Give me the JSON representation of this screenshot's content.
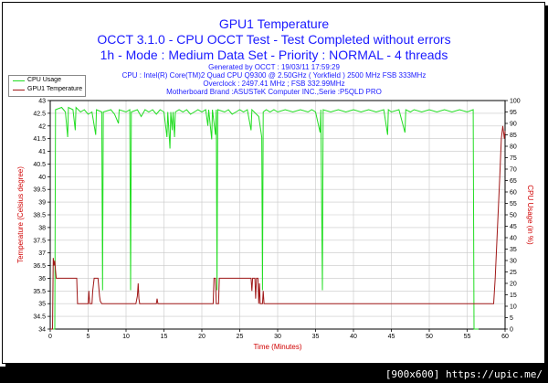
{
  "chart_data": {
    "type": "line",
    "title": "GPU1 Temperature",
    "subtitle": "OCCT 3.1.0 - CPU OCCT Test - Test Completed without errors",
    "subtitle2": "1h - Mode : Medium Data Set - Priority : NORMAL - 4 threads",
    "info_lines": [
      "Generated by OCCT : 19/03/11 17:59:29",
      "CPU : Intel(R) Core(TM)2 Quad CPU Q9300 @ 2.50GHz ( Yorkfield ) 2500 MHz FSB 333MHz",
      "Overclock : 2497.41 MHz ; FSB 332.99MHz",
      "Motherboard Brand :ASUSTeK Computer INC.,Serie :P5QLD PRO"
    ],
    "xlabel": "Time (Minutes)",
    "ylabel": "Temperature (Celsius degree)",
    "y2label": "CPU Usage (in %)",
    "xlim": [
      0,
      60
    ],
    "ylim": [
      34,
      43
    ],
    "y2lim": [
      0,
      100
    ],
    "x_ticks": [
      0,
      5,
      10,
      15,
      20,
      25,
      30,
      35,
      40,
      45,
      50,
      55,
      60
    ],
    "y_ticks": [
      34,
      34.5,
      35,
      35.5,
      36,
      36.5,
      37,
      37.5,
      38,
      38.5,
      39,
      39.5,
      40,
      40.5,
      41,
      41.5,
      42,
      42.5,
      43
    ],
    "y_tick_labels": [
      "34",
      "34.5",
      "35",
      "35.5",
      "36",
      "36.5",
      "37",
      "37.5",
      "38",
      "38.5",
      "39",
      "39.5",
      "40",
      "40.5",
      "41",
      "41.5",
      "42",
      "42.5",
      "43"
    ],
    "y2_ticks": [
      0,
      5,
      10,
      15,
      20,
      25,
      30,
      35,
      40,
      45,
      50,
      55,
      60,
      65,
      70,
      75,
      80,
      85,
      90,
      95,
      100
    ],
    "grid": true,
    "legend_position": "top-left",
    "colors": {
      "cpu_usage": "#22dd22",
      "gpu_temp": "#a01818",
      "plot_bg": "#ffffff",
      "grid": "#c8c8c8",
      "axis_text": "#000000",
      "title": "#1a1aff",
      "xlabel": "#d00000",
      "ylabel": "#d00000"
    },
    "series": [
      {
        "name": "CPU Usage",
        "axis": "right",
        "points": [
          [
            0,
            0
          ],
          [
            0.6,
            0
          ],
          [
            0.7,
            96
          ],
          [
            1.5,
            97
          ],
          [
            2.0,
            95
          ],
          [
            2.3,
            84
          ],
          [
            2.4,
            97
          ],
          [
            3.0,
            96
          ],
          [
            3.3,
            87
          ],
          [
            3.4,
            97
          ],
          [
            4.0,
            95
          ],
          [
            4.5,
            96
          ],
          [
            5.0,
            94
          ],
          [
            5.5,
            95
          ],
          [
            6.0,
            85
          ],
          [
            6.1,
            96
          ],
          [
            6.8,
            95
          ],
          [
            6.9,
            17
          ],
          [
            7.0,
            95
          ],
          [
            8.0,
            96
          ],
          [
            8.5,
            94
          ],
          [
            9.0,
            90
          ],
          [
            9.1,
            96
          ],
          [
            10.0,
            95
          ],
          [
            10.5,
            96
          ],
          [
            10.6,
            17
          ],
          [
            10.7,
            95
          ],
          [
            11.5,
            96
          ],
          [
            12.0,
            93
          ],
          [
            12.5,
            96
          ],
          [
            13.0,
            95
          ],
          [
            13.5,
            96
          ],
          [
            14.0,
            94
          ],
          [
            14.5,
            96
          ],
          [
            15.0,
            95
          ],
          [
            15.4,
            84
          ],
          [
            15.5,
            95
          ],
          [
            15.8,
            79
          ],
          [
            15.9,
            95
          ],
          [
            16.1,
            87
          ],
          [
            16.2,
            95
          ],
          [
            16.4,
            84
          ],
          [
            16.5,
            95
          ],
          [
            17.0,
            96
          ],
          [
            17.5,
            95
          ],
          [
            18.0,
            96
          ],
          [
            18.5,
            94
          ],
          [
            19.0,
            95
          ],
          [
            19.5,
            96
          ],
          [
            20.0,
            95
          ],
          [
            20.5,
            96
          ],
          [
            20.8,
            89
          ],
          [
            20.9,
            96
          ],
          [
            21.3,
            83
          ],
          [
            21.4,
            96
          ],
          [
            21.8,
            85
          ],
          [
            21.9,
            96
          ],
          [
            22.0,
            17
          ],
          [
            22.1,
            96
          ],
          [
            23.0,
            95
          ],
          [
            23.5,
            96
          ],
          [
            24.0,
            94
          ],
          [
            24.5,
            95
          ],
          [
            25.0,
            96
          ],
          [
            25.5,
            95
          ],
          [
            26.0,
            96
          ],
          [
            26.5,
            87
          ],
          [
            26.6,
            96
          ],
          [
            27.5,
            93
          ],
          [
            27.9,
            84
          ],
          [
            28.0,
            17
          ],
          [
            28.1,
            95
          ],
          [
            28.5,
            96
          ],
          [
            29.0,
            95
          ],
          [
            29.5,
            96
          ],
          [
            30.0,
            95
          ],
          [
            31.0,
            96
          ],
          [
            32.0,
            95
          ],
          [
            33.0,
            96
          ],
          [
            34.0,
            95
          ],
          [
            34.5,
            96
          ],
          [
            35.0,
            95
          ],
          [
            35.6,
            86
          ],
          [
            35.7,
            96
          ],
          [
            35.9,
            17
          ],
          [
            36.0,
            96
          ],
          [
            37.0,
            95
          ],
          [
            38.0,
            96
          ],
          [
            39.0,
            95
          ],
          [
            40.0,
            96
          ],
          [
            41.0,
            95
          ],
          [
            42.0,
            96
          ],
          [
            43.0,
            95
          ],
          [
            44.0,
            96
          ],
          [
            44.5,
            85
          ],
          [
            44.6,
            96
          ],
          [
            45.0,
            95
          ],
          [
            46.0,
            96
          ],
          [
            46.8,
            86
          ],
          [
            46.9,
            96
          ],
          [
            47.5,
            95
          ],
          [
            48.0,
            96
          ],
          [
            49.0,
            95
          ],
          [
            50.0,
            96
          ],
          [
            51.0,
            95
          ],
          [
            52.0,
            96
          ],
          [
            53.0,
            95
          ],
          [
            54.0,
            96
          ],
          [
            55.0,
            95
          ],
          [
            55.8,
            96
          ],
          [
            55.9,
            0
          ],
          [
            56.5,
            0
          ]
        ]
      },
      {
        "name": "GPU1 Temperature",
        "axis": "left",
        "points": [
          [
            0,
            34
          ],
          [
            0.3,
            34
          ],
          [
            0.4,
            36.8
          ],
          [
            0.5,
            36.5
          ],
          [
            0.6,
            36.7
          ],
          [
            0.7,
            36.3
          ],
          [
            0.8,
            36
          ],
          [
            1.0,
            36
          ],
          [
            3.0,
            36
          ],
          [
            3.5,
            36
          ],
          [
            3.6,
            35
          ],
          [
            5.0,
            35
          ],
          [
            5.1,
            35.5
          ],
          [
            5.2,
            35
          ],
          [
            5.5,
            35
          ],
          [
            5.6,
            35.5
          ],
          [
            5.8,
            36
          ],
          [
            6.3,
            36
          ],
          [
            6.5,
            35.3
          ],
          [
            6.6,
            35.1
          ],
          [
            6.8,
            35
          ],
          [
            11.3,
            35
          ],
          [
            11.5,
            35.3
          ],
          [
            11.6,
            35.8
          ],
          [
            11.7,
            35.2
          ],
          [
            11.8,
            35
          ],
          [
            14.0,
            35
          ],
          [
            14.1,
            35.2
          ],
          [
            14.2,
            35
          ],
          [
            21.5,
            35
          ],
          [
            21.6,
            36
          ],
          [
            21.8,
            36
          ],
          [
            21.9,
            35
          ],
          [
            22.2,
            35
          ],
          [
            22.3,
            36
          ],
          [
            26.5,
            36
          ],
          [
            26.6,
            35.5
          ],
          [
            26.7,
            36
          ],
          [
            27.0,
            36
          ],
          [
            27.1,
            35.2
          ],
          [
            27.2,
            36
          ],
          [
            27.4,
            36
          ],
          [
            27.5,
            35
          ],
          [
            27.6,
            35.8
          ],
          [
            27.7,
            35
          ],
          [
            28.0,
            35
          ],
          [
            28.1,
            35.5
          ],
          [
            28.2,
            35
          ],
          [
            55.0,
            35
          ],
          [
            58.0,
            35
          ],
          [
            58.5,
            35
          ],
          [
            58.7,
            36
          ],
          [
            59.0,
            38
          ],
          [
            59.3,
            40
          ],
          [
            59.5,
            41.5
          ],
          [
            59.7,
            42
          ],
          [
            59.9,
            41.5
          ],
          [
            60,
            41.8
          ]
        ]
      }
    ]
  },
  "watermark": "[900x600] https://upic.me/"
}
